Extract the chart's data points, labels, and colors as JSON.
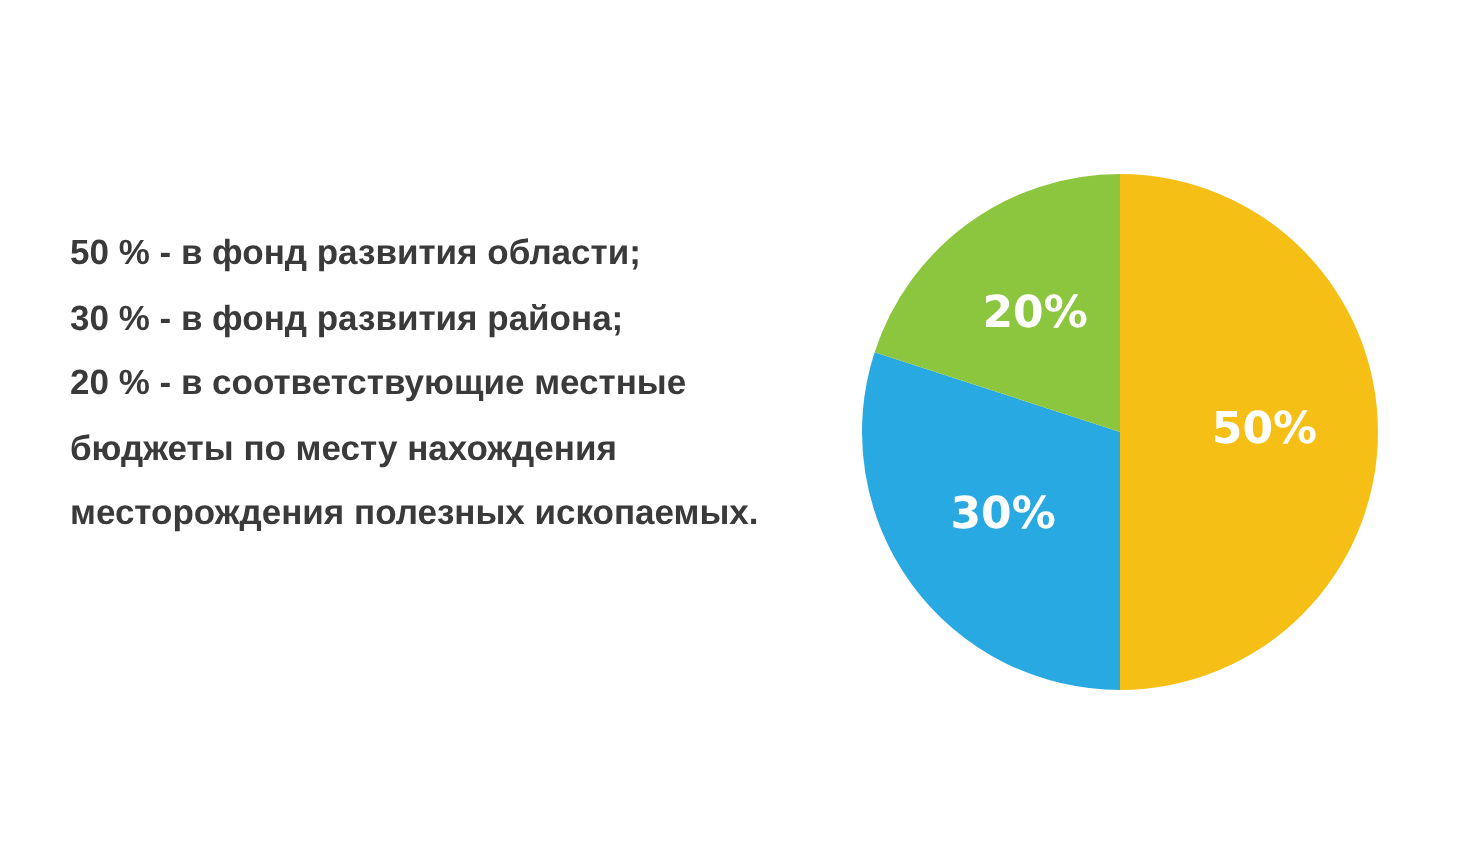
{
  "chart_data": {
    "type": "pie",
    "categories": [
      null,
      null,
      null
    ],
    "values": [
      50,
      30,
      20
    ],
    "colors": [
      "#f5bf16",
      "#29a9e1",
      "#8cc63e"
    ],
    "value_labels": [
      "50%",
      "30%",
      "20%"
    ],
    "annotations": [
      "50 % - в фонд развития области;",
      "30 % - в фонд развития района;",
      "20 % - в соответствующие местные бюджеты по месту нахождения месторождения полезных ископаемых."
    ]
  }
}
